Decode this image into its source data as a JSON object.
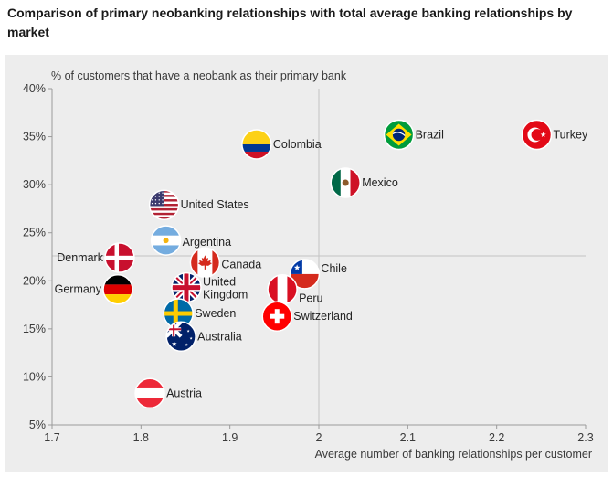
{
  "title": "Comparison of primary neobanking relationships with total average banking relationships by market",
  "chart_data": {
    "type": "scatter",
    "title": "Comparison of primary neobanking relationships with total average banking relationships by market",
    "xlabel": "Average number of banking relationships per customer",
    "ylabel": "% of customers that have a neobank as their primary bank",
    "xlim": [
      1.7,
      2.3
    ],
    "ylim": [
      5,
      40
    ],
    "x_ticks": [
      "1.7",
      "1.8",
      "1.9",
      "2",
      "2.1",
      "2.2",
      "2.3"
    ],
    "y_ticks": [
      "5%",
      "10%",
      "15%",
      "20%",
      "25%",
      "30%",
      "35%",
      "40%"
    ],
    "reference_lines": {
      "x": 2.0,
      "y": 22.6
    },
    "points": [
      {
        "name": "Turkey",
        "x": 2.245,
        "y": 35.2,
        "flag": "turkey"
      },
      {
        "name": "Brazil",
        "x": 2.09,
        "y": 35.2,
        "flag": "brazil"
      },
      {
        "name": "Colombia",
        "x": 1.93,
        "y": 34.2,
        "flag": "colombia"
      },
      {
        "name": "Mexico",
        "x": 2.03,
        "y": 30.2,
        "flag": "mexico"
      },
      {
        "name": "United States",
        "x": 1.826,
        "y": 27.9,
        "flag": "usa"
      },
      {
        "name": "Argentina",
        "x": 1.828,
        "y": 24.2,
        "flag": "argentina"
      },
      {
        "name": "Denmark",
        "x": 1.776,
        "y": 22.4,
        "flag": "denmark"
      },
      {
        "name": "Canada",
        "x": 1.872,
        "y": 21.9,
        "flag": "canada"
      },
      {
        "name": "Chile",
        "x": 1.984,
        "y": 20.7,
        "flag": "chile"
      },
      {
        "name": "Germany",
        "x": 1.774,
        "y": 19.1,
        "flag": "germany"
      },
      {
        "name": "United Kingdom",
        "x": 1.851,
        "y": 19.3,
        "flag": "uk"
      },
      {
        "name": "Peru",
        "x": 1.959,
        "y": 19.1,
        "flag": "peru"
      },
      {
        "name": "Sweden",
        "x": 1.842,
        "y": 16.6,
        "flag": "sweden"
      },
      {
        "name": "Switzerland",
        "x": 1.953,
        "y": 16.3,
        "flag": "switzerland"
      },
      {
        "name": "Australia",
        "x": 1.845,
        "y": 14.2,
        "flag": "australia"
      },
      {
        "name": "Austria",
        "x": 1.81,
        "y": 8.3,
        "flag": "austria"
      }
    ]
  }
}
